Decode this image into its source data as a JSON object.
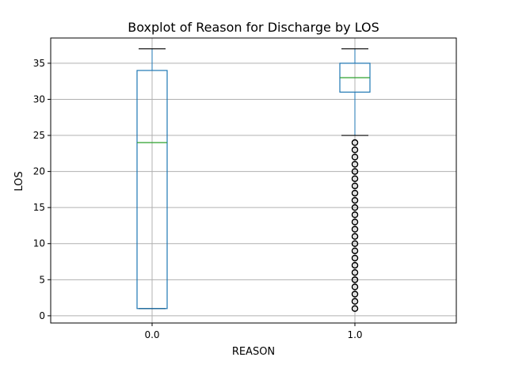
{
  "chart_data": {
    "type": "boxplot",
    "title": "Boxplot of Reason for Discharge by LOS",
    "xlabel": "REASON",
    "ylabel": "LOS",
    "categories": [
      "0.0",
      "1.0"
    ],
    "yticks": [
      0,
      5,
      10,
      15,
      20,
      25,
      30,
      35
    ],
    "ylim": [
      -1,
      38.5
    ],
    "grid": true,
    "boxes": [
      {
        "category": "0.0",
        "whisker_low": 1,
        "q1": 1,
        "median": 24,
        "q3": 34,
        "whisker_high": 37,
        "outliers": []
      },
      {
        "category": "1.0",
        "whisker_low": 25,
        "q1": 31,
        "median": 33,
        "q3": 35,
        "whisker_high": 37,
        "outliers": [
          1,
          2,
          3,
          4,
          5,
          6,
          7,
          8,
          9,
          10,
          11,
          12,
          13,
          14,
          15,
          16,
          17,
          18,
          19,
          20,
          21,
          22,
          23,
          24
        ]
      }
    ],
    "colors": {
      "box": "#1f77b4",
      "median": "#2ca02c",
      "grid": "#b0b0b0",
      "outlier": "#000000"
    }
  }
}
